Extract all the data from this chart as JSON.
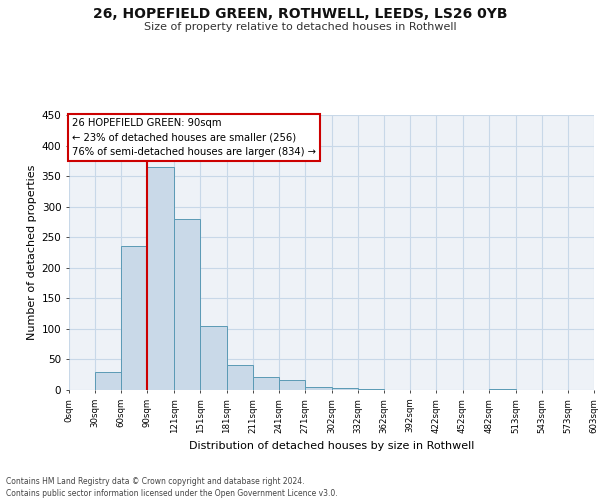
{
  "title_line1": "26, HOPEFIELD GREEN, ROTHWELL, LEEDS, LS26 0YB",
  "title_line2": "Size of property relative to detached houses in Rothwell",
  "xlabel": "Distribution of detached houses by size in Rothwell",
  "ylabel": "Number of detached properties",
  "bar_edges": [
    0,
    30,
    60,
    90,
    121,
    151,
    181,
    211,
    241,
    271,
    302,
    332,
    362,
    392,
    422,
    452,
    482,
    513,
    543,
    573,
    603
  ],
  "bar_heights": [
    0,
    30,
    235,
    365,
    280,
    105,
    41,
    21,
    16,
    5,
    3,
    1,
    0,
    0,
    0,
    0,
    1,
    0,
    0,
    0
  ],
  "bar_color": "#c9d9e8",
  "bar_edge_color": "#5a9ab5",
  "red_line_x": 90,
  "annotation_box_text": "26 HOPEFIELD GREEN: 90sqm\n← 23% of detached houses are smaller (256)\n76% of semi-detached houses are larger (834) →",
  "annotation_box_color": "#ffffff",
  "annotation_box_edge_color": "#cc0000",
  "red_line_color": "#cc0000",
  "ylim": [
    0,
    450
  ],
  "yticks": [
    0,
    50,
    100,
    150,
    200,
    250,
    300,
    350,
    400,
    450
  ],
  "grid_color": "#c8d8e8",
  "bg_color": "#eef2f7",
  "footer_text": "Contains HM Land Registry data © Crown copyright and database right 2024.\nContains public sector information licensed under the Open Government Licence v3.0.",
  "tick_labels": [
    "0sqm",
    "30sqm",
    "60sqm",
    "90sqm",
    "121sqm",
    "151sqm",
    "181sqm",
    "211sqm",
    "241sqm",
    "271sqm",
    "302sqm",
    "332sqm",
    "362sqm",
    "392sqm",
    "422sqm",
    "452sqm",
    "482sqm",
    "513sqm",
    "543sqm",
    "573sqm",
    "603sqm"
  ]
}
